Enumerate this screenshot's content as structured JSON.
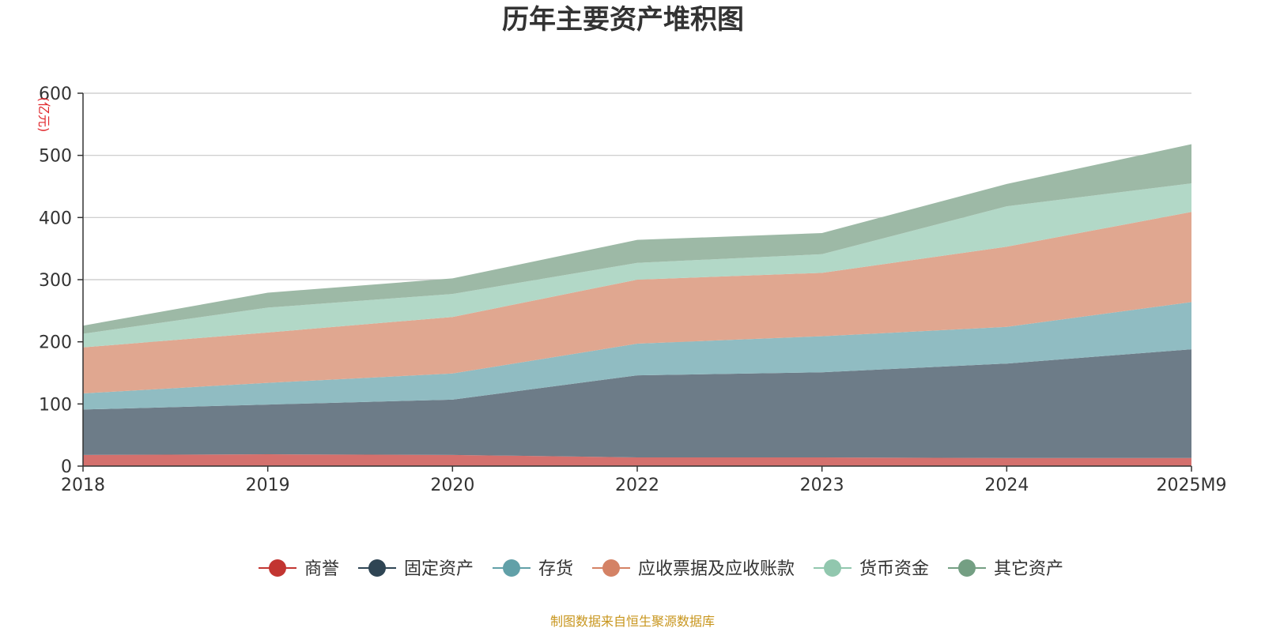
{
  "chart_data": {
    "type": "area",
    "stacked": true,
    "title": "历年主要资产堆积图",
    "ylabel": "(亿元)",
    "ylim": [
      0,
      600
    ],
    "yticks": [
      0,
      100,
      200,
      300,
      400,
      500,
      600
    ],
    "categories": [
      "2018",
      "2019",
      "2020",
      "2022",
      "2023",
      "2024",
      "2025M9"
    ],
    "series": [
      {
        "name": "商誉",
        "color": "#c23531",
        "fill": "#d4706d",
        "values": [
          18,
          19,
          18,
          14,
          14,
          13,
          13
        ]
      },
      {
        "name": "固定资产",
        "color": "#2f4554",
        "fill": "#6d7c88",
        "values": [
          73,
          80,
          89,
          132,
          137,
          152,
          175
        ]
      },
      {
        "name": "存货",
        "color": "#61a0a8",
        "fill": "#90bcc2",
        "values": [
          26,
          35,
          42,
          51,
          58,
          59,
          76
        ]
      },
      {
        "name": "应收票据及应收账款",
        "color": "#d48265",
        "fill": "#e0a790",
        "values": [
          74,
          81,
          91,
          103,
          102,
          129,
          145
        ]
      },
      {
        "name": "货币资金",
        "color": "#91c7ae",
        "fill": "#b2d8c7",
        "values": [
          22,
          40,
          37,
          27,
          30,
          65,
          46
        ]
      },
      {
        "name": "其它资产",
        "color": "#749f83",
        "fill": "#9db9a6",
        "values": [
          13,
          24,
          25,
          37,
          34,
          36,
          63
        ]
      }
    ],
    "legend_position": "bottom-center",
    "grid": true
  },
  "source_note": "制图数据来自恒生聚源数据库"
}
